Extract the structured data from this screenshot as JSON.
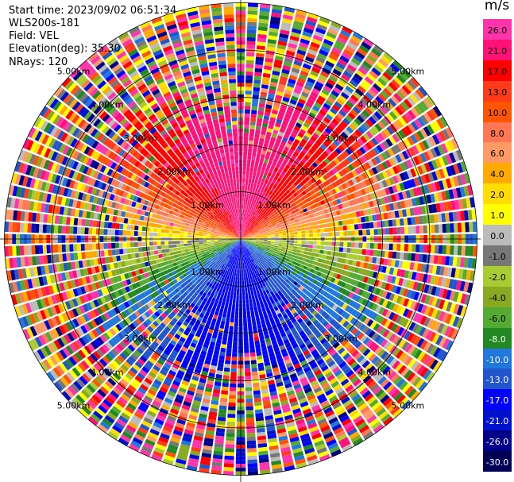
{
  "header": {
    "start_time": "Start time: 2023/09/02 06:51:34",
    "instrument": "WLS200s-181",
    "field": "Field: VEL",
    "elevation": "Elevation(deg): 35.30",
    "nrays": "NRays: 120"
  },
  "chart_data": {
    "type": "heatmap",
    "projection": "polar PPI",
    "field": "VEL",
    "units": "m/s",
    "nrays": 120,
    "elevation_deg": 35.3,
    "range_rings_km": [
      1.0,
      2.0,
      3.0,
      4.0,
      5.0
    ],
    "range_ring_labels": [
      "1.00km",
      "2.00km",
      "3.00km",
      "4.00km",
      "5.00km"
    ],
    "max_range_km": 5.0,
    "velocity_pattern": {
      "north_sector": "positive, 10 to 21 m/s",
      "east_west_axis": "near zero, -1 to 1 m/s",
      "south_sector": "negative, -17 to -21 m/s",
      "outer_ranges": "noise across full scale"
    },
    "colorbar": {
      "title": "m/s",
      "ticks": [
        "26.0",
        "21.0",
        "17.0",
        "13.0",
        "10.0",
        "8.0",
        "6.0",
        "4.0",
        "2.0",
        "1.0",
        "0.0",
        "-1.0",
        "-2.0",
        "-4.0",
        "-6.0",
        "-8.0",
        "-10.0",
        "-13.0",
        "-17.0",
        "-21.0",
        "-26.0",
        "-30.0"
      ],
      "colors": [
        "#ff33aa",
        "#ff1177",
        "#ff0000",
        "#ff3a1a",
        "#ff5500",
        "#ff7755",
        "#ff9966",
        "#ffaa00",
        "#ffdd00",
        "#ffff00",
        "#bbbbbb",
        "#777777",
        "#aacc33",
        "#88aa22",
        "#55aa33",
        "#228822",
        "#2277dd",
        "#2255cc",
        "#0000ff",
        "#0011cc",
        "#000088",
        "#000055"
      ]
    }
  }
}
